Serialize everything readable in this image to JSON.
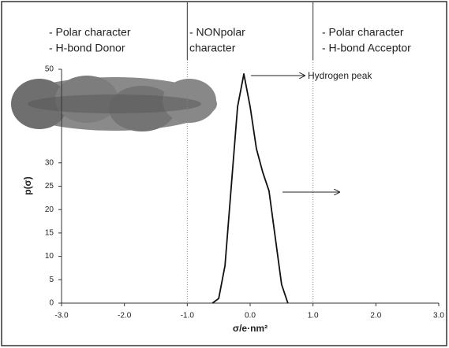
{
  "chart_data": {
    "type": "line",
    "regions": [
      {
        "lines": [
          "- Polar character",
          "- H-bond Donor"
        ]
      },
      {
        "lines": [
          "- NONpolar",
          "character"
        ]
      },
      {
        "lines": [
          "- Polar character",
          "- H-bond Acceptor"
        ]
      }
    ],
    "dividers": [
      -1.0,
      1.0
    ],
    "x_label": "σ/e·nm²",
    "y_label": "p(σ)",
    "annotation": "Hydrogen peak",
    "x": [
      -0.6,
      -0.5,
      -0.4,
      -0.3,
      -0.2,
      -0.1,
      0.0,
      0.1,
      0.2,
      0.3,
      0.4,
      0.5,
      0.6
    ],
    "values": [
      0,
      1,
      8,
      25,
      42,
      49,
      42,
      33,
      28,
      24,
      14,
      4,
      0
    ],
    "color": "#111111",
    "xlim": [
      -3.0,
      3.0
    ],
    "xticks": [
      {
        "value": -3.0,
        "label": "-3.0"
      },
      {
        "value": -2.0,
        "label": "-2.0"
      },
      {
        "value": -1.0,
        "label": "-1.0"
      },
      {
        "value": 0.0,
        "label": "0.0"
      },
      {
        "value": 1.0,
        "label": "1.0"
      },
      {
        "value": 2.0,
        "label": "2.0"
      },
      {
        "value": 3.0,
        "label": "3.0"
      }
    ],
    "ylim": [
      0,
      50
    ],
    "yticks": [
      0,
      5,
      10,
      15,
      20,
      25,
      30,
      50
    ]
  }
}
